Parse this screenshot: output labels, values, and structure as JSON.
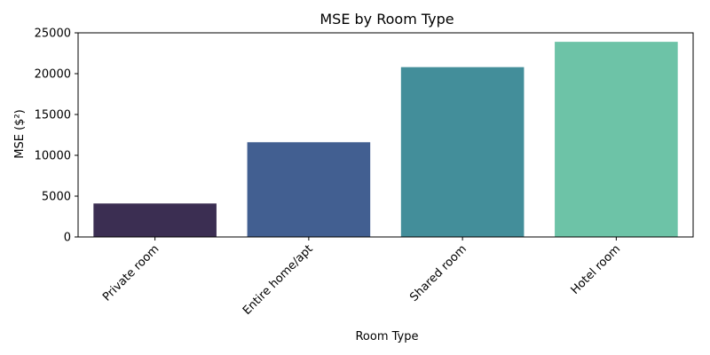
{
  "chart_data": {
    "type": "bar",
    "title": "MSE by Room Type",
    "xlabel": "Room Type",
    "ylabel": "MSE ($²)",
    "categories": [
      "Private room",
      "Entire home/apt",
      "Shared room",
      "Hotel room"
    ],
    "values": [
      4100,
      11600,
      20800,
      23900
    ],
    "colors": [
      "#3b2e52",
      "#425f91",
      "#438e9a",
      "#6dc3a7"
    ],
    "ylim": [
      0,
      25000
    ],
    "yticks": [
      0,
      5000,
      10000,
      15000,
      20000,
      25000
    ],
    "grid": false,
    "legend": "none"
  }
}
